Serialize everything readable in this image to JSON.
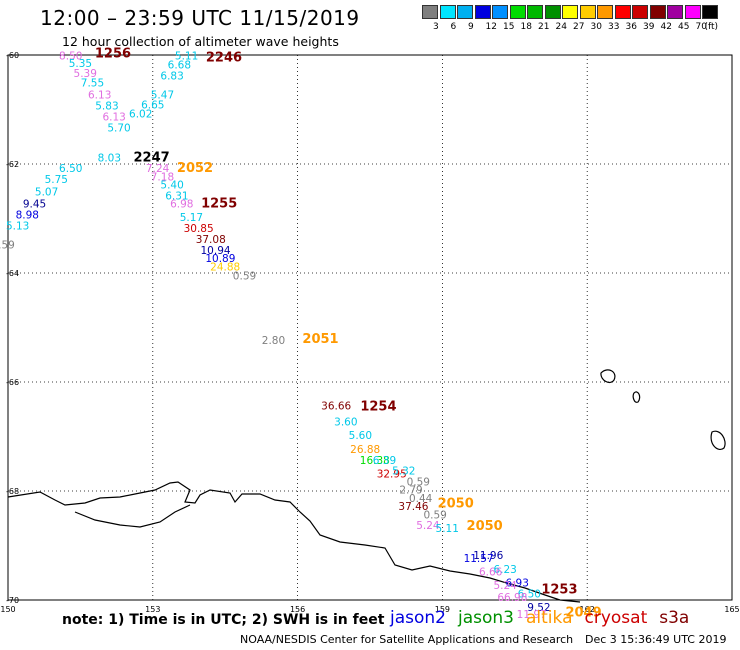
{
  "header": {
    "title": "12:00 – 23:59 UTC 11/15/2019",
    "subtitle": "12 hour collection of altimeter wave heights"
  },
  "colorscale": {
    "unit": "(ft)",
    "colors": [
      "#7f7f7f",
      "#00e5ff",
      "#00b0f0",
      "#0000e0",
      "#0090ff",
      "#00dd00",
      "#00b800",
      "#009000",
      "#ffff00",
      "#ffcc00",
      "#ff9900",
      "#ff0000",
      "#cc0000",
      "#800000",
      "#a000a0",
      "#ff00ff",
      "#000000"
    ],
    "labels": [
      "3",
      "6",
      "9",
      "12",
      "15",
      "18",
      "21",
      "24",
      "27",
      "30",
      "33",
      "36",
      "39",
      "42",
      "45",
      "70"
    ]
  },
  "map": {
    "lat_labels": [
      "-60",
      "-62",
      "-64",
      "-66",
      "-68",
      "-70"
    ],
    "lon_labels": [
      "150",
      "153",
      "156",
      "159",
      "162",
      "165"
    ]
  },
  "observations": [
    {
      "text": "8.50",
      "lon": 151.3,
      "lat": -60.08,
      "color": "#e06ee0"
    },
    {
      "text": "5.35",
      "lon": 151.5,
      "lat": -60.22,
      "color": "#00c8e8"
    },
    {
      "text": "5.39",
      "lon": 151.6,
      "lat": -60.4,
      "color": "#e06ee0"
    },
    {
      "text": "7.55",
      "lon": 151.75,
      "lat": -60.58,
      "color": "#00c8e8"
    },
    {
      "text": "6.13",
      "lon": 151.9,
      "lat": -60.8,
      "color": "#e06ee0"
    },
    {
      "text": "5.83",
      "lon": 152.05,
      "lat": -61.0,
      "color": "#00c8e8"
    },
    {
      "text": "6.13",
      "lon": 152.2,
      "lat": -61.2,
      "color": "#e06ee0"
    },
    {
      "text": "5.70",
      "lon": 152.3,
      "lat": -61.4,
      "color": "#00c8e8"
    },
    {
      "text": "8.03",
      "lon": 152.1,
      "lat": -61.95,
      "color": "#00c8e8"
    },
    {
      "text": "5.11",
      "lon": 153.7,
      "lat": -60.08,
      "color": "#00c8e8"
    },
    {
      "text": "6.68",
      "lon": 153.55,
      "lat": -60.25,
      "color": "#00c8e8"
    },
    {
      "text": "6.83",
      "lon": 153.4,
      "lat": -60.45,
      "color": "#00c8e8"
    },
    {
      "text": "5.47",
      "lon": 153.2,
      "lat": -60.8,
      "color": "#00c8e8"
    },
    {
      "text": "6.65",
      "lon": 153.0,
      "lat": -60.98,
      "color": "#00c8e8"
    },
    {
      "text": "6.02",
      "lon": 152.75,
      "lat": -61.15,
      "color": "#00c8e8"
    },
    {
      "text": "6.50",
      "lon": 151.3,
      "lat": -62.15,
      "color": "#00c8e8"
    },
    {
      "text": "5.75",
      "lon": 151.0,
      "lat": -62.35,
      "color": "#00c8e8"
    },
    {
      "text": "5.07",
      "lon": 150.8,
      "lat": -62.58,
      "color": "#00c8e8"
    },
    {
      "text": "9.45",
      "lon": 150.55,
      "lat": -62.8,
      "color": "#000090"
    },
    {
      "text": "8.98",
      "lon": 150.4,
      "lat": -63.0,
      "color": "#0000e0"
    },
    {
      "text": "5.13",
      "lon": 150.2,
      "lat": -63.2,
      "color": "#00c8e8"
    },
    {
      "text": "0.59",
      "lon": 149.9,
      "lat": -63.55,
      "color": "#7f7f7f"
    },
    {
      "text": "7.24",
      "lon": 153.1,
      "lat": -62.15,
      "color": "#e06ee0"
    },
    {
      "text": "7.18",
      "lon": 153.2,
      "lat": -62.3,
      "color": "#e06ee0"
    },
    {
      "text": "5.40",
      "lon": 153.4,
      "lat": -62.45,
      "color": "#00c8e8"
    },
    {
      "text": "6.31",
      "lon": 153.5,
      "lat": -62.65,
      "color": "#00c8e8"
    },
    {
      "text": "6.98",
      "lon": 153.6,
      "lat": -62.8,
      "color": "#e06ee0"
    },
    {
      "text": "5.17",
      "lon": 153.8,
      "lat": -63.05,
      "color": "#00c8e8"
    },
    {
      "text": "30.85",
      "lon": 153.95,
      "lat": -63.25,
      "color": "#cc0000"
    },
    {
      "text": "37.08",
      "lon": 154.2,
      "lat": -63.45,
      "color": "#800000"
    },
    {
      "text": "10.94",
      "lon": 154.3,
      "lat": -63.65,
      "color": "#0000a0"
    },
    {
      "text": "10.89",
      "lon": 154.4,
      "lat": -63.8,
      "color": "#0000e0"
    },
    {
      "text": "24.88",
      "lon": 154.5,
      "lat": -63.95,
      "color": "#ffcc00"
    },
    {
      "text": "0.59",
      "lon": 154.9,
      "lat": -64.12,
      "color": "#7f7f7f"
    },
    {
      "text": "2.80",
      "lon": 155.5,
      "lat": -65.3,
      "color": "#7f7f7f"
    },
    {
      "text": "36.66",
      "lon": 156.8,
      "lat": -66.5,
      "color": "#800000"
    },
    {
      "text": "3.60",
      "lon": 157.0,
      "lat": -66.8,
      "color": "#00c8e8"
    },
    {
      "text": "5.60",
      "lon": 157.3,
      "lat": -67.05,
      "color": "#00c8e8"
    },
    {
      "text": "26.88",
      "lon": 157.4,
      "lat": -67.3,
      "color": "#ff9900"
    },
    {
      "text": "16.38",
      "lon": 157.6,
      "lat": -67.5,
      "color": "#00dd00"
    },
    {
      "text": "6.39",
      "lon": 157.8,
      "lat": -67.5,
      "color": "#00c8e8"
    },
    {
      "text": "32.95",
      "lon": 157.95,
      "lat": -67.75,
      "color": "#cc0000"
    },
    {
      "text": "5.32",
      "lon": 158.2,
      "lat": -67.7,
      "color": "#00c8e8"
    },
    {
      "text": "0.59",
      "lon": 158.5,
      "lat": -67.9,
      "color": "#7f7f7f"
    },
    {
      "text": "2.79",
      "lon": 158.35,
      "lat": -68.05,
      "color": "#7f7f7f"
    },
    {
      "text": "0.44",
      "lon": 158.55,
      "lat": -68.2,
      "color": "#7f7f7f"
    },
    {
      "text": "37.46",
      "lon": 158.4,
      "lat": -68.35,
      "color": "#800000"
    },
    {
      "text": "0.59",
      "lon": 158.85,
      "lat": -68.5,
      "color": "#7f7f7f"
    },
    {
      "text": "5.24",
      "lon": 158.7,
      "lat": -68.7,
      "color": "#e06ee0"
    },
    {
      "text": "5.11",
      "lon": 159.1,
      "lat": -68.75,
      "color": "#00c8e8"
    },
    {
      "text": "11.96",
      "lon": 159.95,
      "lat": -69.25,
      "color": "#0000a0"
    },
    {
      "text": "11.57",
      "lon": 159.75,
      "lat": -69.3,
      "color": "#0000e0"
    },
    {
      "text": "6.23",
      "lon": 160.3,
      "lat": -69.5,
      "color": "#00c8e8"
    },
    {
      "text": "6.66",
      "lon": 160.0,
      "lat": -69.55,
      "color": "#e06ee0"
    },
    {
      "text": "6.93",
      "lon": 160.55,
      "lat": -69.75,
      "color": "#0000e0"
    },
    {
      "text": "5.24",
      "lon": 160.3,
      "lat": -69.8,
      "color": "#e06ee0"
    },
    {
      "text": "6.50",
      "lon": 160.8,
      "lat": -69.95,
      "color": "#00c8e8"
    },
    {
      "text": "66.98",
      "lon": 160.45,
      "lat": -70.02,
      "color": "#e06ee0"
    },
    {
      "text": "9.52",
      "lon": 161.0,
      "lat": -70.2,
      "color": "#0000a0"
    },
    {
      "text": "11.97",
      "lon": 160.85,
      "lat": -70.33,
      "color": "#e06ee0"
    }
  ],
  "times": [
    {
      "text": "1256",
      "lon": 151.8,
      "lat": -60.05,
      "color": "#800000"
    },
    {
      "text": "2246",
      "lon": 154.1,
      "lat": -60.12,
      "color": "#800000"
    },
    {
      "text": "2247",
      "lon": 152.6,
      "lat": -61.95,
      "color": "#000000"
    },
    {
      "text": "2052",
      "lon": 153.5,
      "lat": -62.15,
      "color": "#ff9900"
    },
    {
      "text": "1255",
      "lon": 154.0,
      "lat": -62.8,
      "color": "#800000"
    },
    {
      "text": "2051",
      "lon": 156.1,
      "lat": -65.28,
      "color": "#ff9900"
    },
    {
      "text": "1254",
      "lon": 157.3,
      "lat": -66.52,
      "color": "#800000"
    },
    {
      "text": "2050",
      "lon": 158.9,
      "lat": -68.3,
      "color": "#ff9900"
    },
    {
      "text": "2050",
      "lon": 159.5,
      "lat": -68.72,
      "color": "#ff9900"
    },
    {
      "text": "1253",
      "lon": 161.05,
      "lat": -69.88,
      "color": "#800000"
    },
    {
      "text": "2049",
      "lon": 161.55,
      "lat": -70.3,
      "color": "#ff9900"
    }
  ],
  "footer": {
    "note": "note: 1) Time is in UTC; 2) SWH is in feet",
    "satellites": [
      {
        "name": "jason2",
        "color": "#0000e0"
      },
      {
        "name": "jason3",
        "color": "#009000"
      },
      {
        "name": "altika",
        "color": "#ff9900"
      },
      {
        "name": "cryosat",
        "color": "#cc0000"
      },
      {
        "name": "s3a",
        "color": "#800000"
      }
    ],
    "credit": "NOAA/NESDIS Center for Satellite Applications and Research",
    "date": "Dec  3 15:36:49 UTC 2019"
  }
}
